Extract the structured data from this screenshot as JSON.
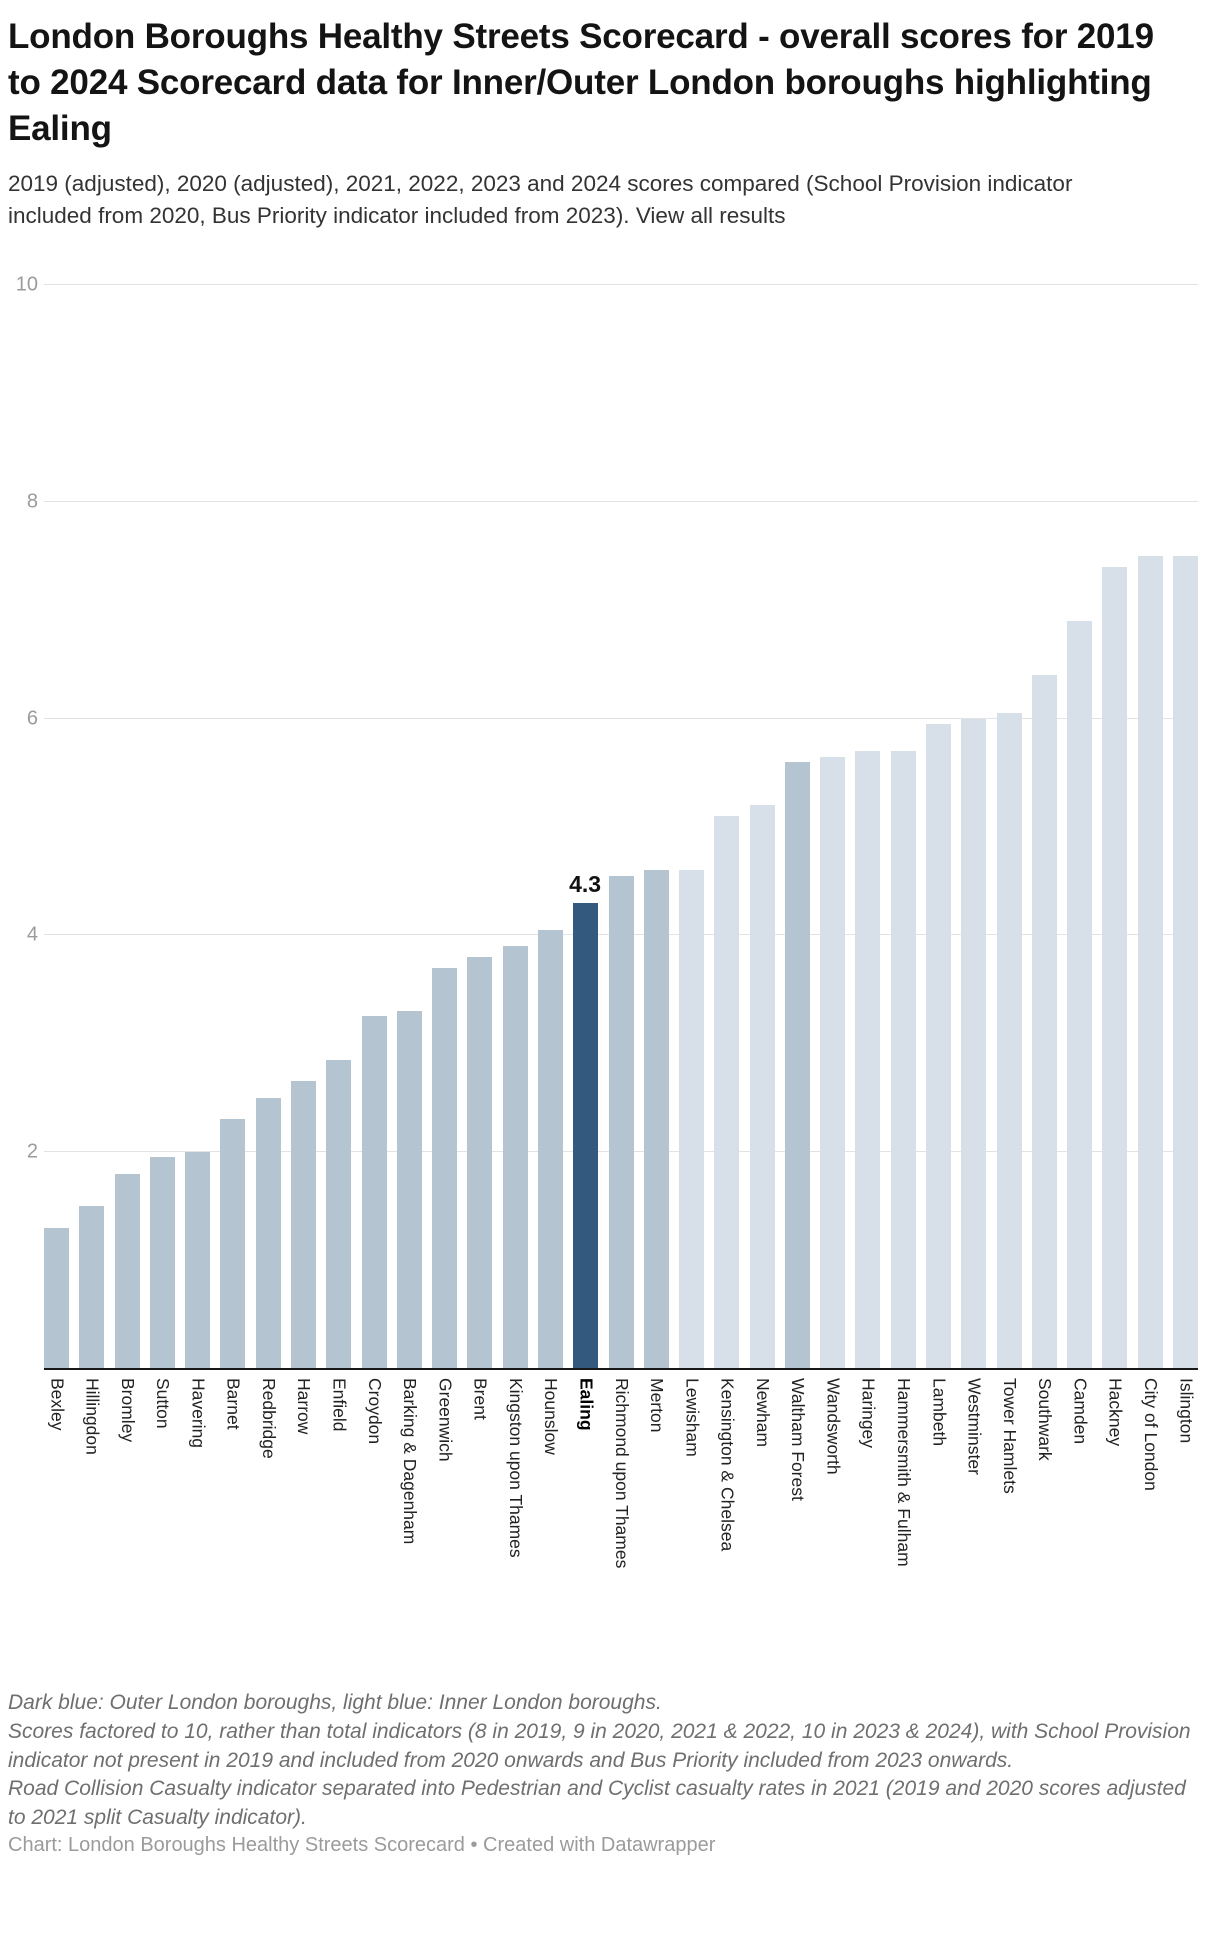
{
  "header": {
    "title": "London Boroughs Healthy Streets Scorecard - overall scores for 2019 to 2024 Scorecard data for Inner/Outer London boroughs highlighting Ealing",
    "subtitle": "2019 (adjusted), 2020 (adjusted), 2021, 2022, 2023 and 2024 scores compared (School Provision indicator included from 2020, Bus Priority indicator included from 2023).",
    "subtitle_link": "View all results"
  },
  "chart_data": {
    "type": "bar",
    "title": "London Boroughs Healthy Streets Scorecard - overall scores for 2019 to 2024 Scorecard data for Inner/Outer London boroughs highlighting Ealing",
    "xlabel": "",
    "ylabel": "",
    "ylim": [
      0,
      10
    ],
    "y_ticks": [
      2,
      4,
      6,
      8,
      10
    ],
    "grid": "horizontal",
    "legend_position": "none",
    "categories": [
      "Bexley",
      "Hillingdon",
      "Bromley",
      "Sutton",
      "Havering",
      "Barnet",
      "Redbridge",
      "Harrow",
      "Enfield",
      "Croydon",
      "Barking & Dagenham",
      "Greenwich",
      "Brent",
      "Kingston upon Thames",
      "Hounslow",
      "Ealing",
      "Richmond upon Thames",
      "Merton",
      "Lewisham",
      "Kensington & Chelsea",
      "Newham",
      "Waltham Forest",
      "Wandsworth",
      "Haringey",
      "Hammersmith & Fulham",
      "Lambeth",
      "Westminster",
      "Tower Hamlets",
      "Southwark",
      "Camden",
      "Hackney",
      "City of London",
      "Islington"
    ],
    "values": [
      1.3,
      1.5,
      1.8,
      1.95,
      2.0,
      2.3,
      2.5,
      2.65,
      2.85,
      3.25,
      3.3,
      3.7,
      3.8,
      3.9,
      4.05,
      4.3,
      4.55,
      4.6,
      4.6,
      5.1,
      5.2,
      5.6,
      5.65,
      5.7,
      5.7,
      5.95,
      6.0,
      6.05,
      6.4,
      6.9,
      7.4,
      7.5,
      7.5
    ],
    "groups": [
      "outer",
      "outer",
      "outer",
      "outer",
      "outer",
      "outer",
      "outer",
      "outer",
      "outer",
      "outer",
      "outer",
      "outer",
      "outer",
      "outer",
      "outer",
      "highlight",
      "outer",
      "outer",
      "inner",
      "inner",
      "inner",
      "outer",
      "inner",
      "inner",
      "inner",
      "inner",
      "inner",
      "inner",
      "inner",
      "inner",
      "inner",
      "inner",
      "inner"
    ],
    "colors": {
      "outer": "#b5c4d1",
      "inner": "#d7e0e8",
      "highlight": "#33597e"
    },
    "highlighted_category": "Ealing",
    "value_labels": [
      {
        "category": "Ealing",
        "text": "4.3"
      }
    ]
  },
  "notes": {
    "line1": "Dark blue: Outer London boroughs, light blue: Inner London boroughs.",
    "line2": "Scores factored to 10, rather than total indicators (8 in 2019, 9 in 2020, 2021 & 2022, 10 in 2023 & 2024), with School Provision indicator not present in 2019 and included from 2020 onwards and Bus Priority included from 2023 onwards.",
    "line3": "Road Collision Casualty indicator separated into Pedestrian and Cyclist casualty rates in 2021 (2019 and 2020 scores adjusted to 2021 split Casualty indicator)."
  },
  "credit": "Chart: London Boroughs Healthy Streets Scorecard • Created with Datawrapper"
}
